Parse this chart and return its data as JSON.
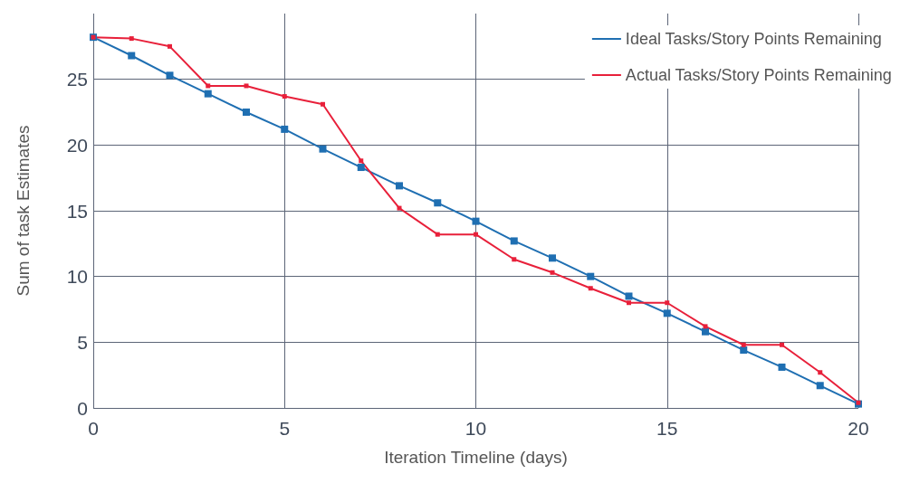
{
  "chart_data": {
    "type": "line",
    "xlabel": "Iteration Timeline (days)",
    "ylabel": "Sum of task Estimates",
    "x": [
      0,
      1,
      2,
      3,
      4,
      5,
      6,
      7,
      8,
      9,
      10,
      11,
      12,
      13,
      14,
      15,
      16,
      17,
      18,
      19,
      20
    ],
    "series": [
      {
        "name": "Ideal Tasks/Story Points Remaining",
        "color": "#1f6fb2",
        "values": [
          28.2,
          26.8,
          25.3,
          23.9,
          22.5,
          21.2,
          19.7,
          18.3,
          16.9,
          15.6,
          14.2,
          12.7,
          11.4,
          10.0,
          8.5,
          7.2,
          5.8,
          4.4,
          3.1,
          1.7,
          0.3
        ]
      },
      {
        "name": "Actual Tasks/Story Points Remaining",
        "color": "#e8203a",
        "values": [
          28.2,
          28.1,
          27.5,
          24.5,
          24.5,
          23.7,
          23.1,
          18.8,
          15.2,
          13.2,
          13.2,
          11.3,
          10.3,
          9.1,
          8.0,
          8.0,
          6.2,
          4.8,
          4.8,
          2.7,
          0.4
        ]
      }
    ],
    "xlim": [
      0,
      20
    ],
    "xticks": [
      0,
      5,
      10,
      15,
      20
    ],
    "ylim": [
      0,
      30
    ],
    "yticks": [
      0,
      5,
      10,
      15,
      20,
      25
    ],
    "grid": true,
    "legend": "top right",
    "marker": "square",
    "line_style": "solid"
  }
}
